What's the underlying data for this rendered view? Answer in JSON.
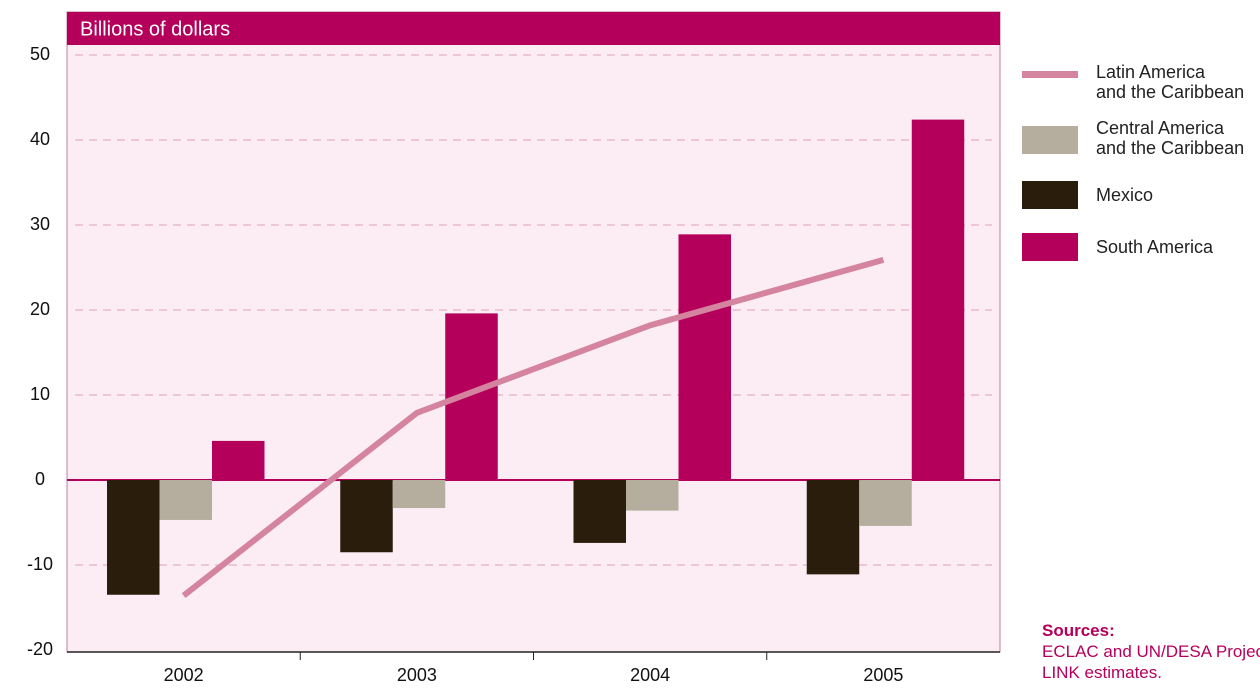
{
  "chart_data": {
    "type": "bar",
    "title": "Billions of dollars",
    "categories": [
      "2002",
      "2003",
      "2004",
      "2005"
    ],
    "series": [
      {
        "name": "Latin America\nand the Caribbean",
        "type": "line",
        "color": "#d4849f",
        "values": [
          -13.6,
          7.9,
          18.2,
          25.9
        ]
      },
      {
        "name": "Mexico",
        "type": "bar",
        "color": "#2a1d0c",
        "values": [
          -13.5,
          -8.5,
          -7.4,
          -11.1
        ]
      },
      {
        "name": "Central America\nand the Caribbean",
        "type": "bar",
        "color": "#b5ad9e",
        "values": [
          -4.7,
          -3.3,
          -3.6,
          -5.4
        ]
      },
      {
        "name": "South America",
        "type": "bar",
        "color": "#b5005b",
        "values": [
          4.6,
          19.6,
          28.9,
          42.4
        ]
      }
    ],
    "legend_order": [
      0,
      2,
      1,
      3
    ],
    "ylim": [
      -20,
      50
    ],
    "yticks": [
      -20,
      -10,
      0,
      10,
      20,
      30,
      40,
      50
    ],
    "grid": true,
    "sources": {
      "title": "Sources:",
      "text": "ECLAC and UN/DESA Project\nLINK estimates."
    }
  }
}
